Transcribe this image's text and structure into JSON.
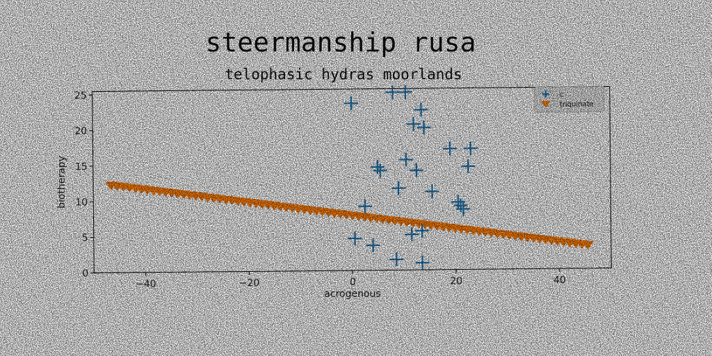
{
  "chart_data": {
    "type": "scatter",
    "title": "steermanship rusa",
    "subtitle": "telophasic hydras moorlands",
    "xlabel": "acrogenous",
    "ylabel": "biotherapy",
    "xlim": [
      -50,
      50
    ],
    "ylim": [
      0,
      25.5
    ],
    "xticks": [
      -40,
      -20,
      0,
      20,
      40
    ],
    "yticks": [
      0,
      5,
      10,
      15,
      20,
      25
    ],
    "grid": false,
    "legend_position": "top-right",
    "series": [
      {
        "name": "c",
        "marker": "plus",
        "color": "#1f77b4",
        "x": [
          0.0,
          8.0,
          10.5,
          13.5,
          12.0,
          14.0,
          19.0,
          23.0,
          22.5,
          10.5,
          5.5,
          5.0,
          12.5,
          9.0,
          15.5,
          2.5,
          20.5,
          21.0,
          21.5,
          0.5,
          4.0,
          8.5,
          13.5,
          13.5,
          11.5
        ],
        "y": [
          23.5,
          25.0,
          25.0,
          22.5,
          20.5,
          20.0,
          17.0,
          17.0,
          14.5,
          15.5,
          14.0,
          14.5,
          14.0,
          11.5,
          11.0,
          9.0,
          9.5,
          9.0,
          8.5,
          4.5,
          3.5,
          1.5,
          1.0,
          5.5,
          5.0
        ]
      },
      {
        "name": "triquinate",
        "marker": "triangle-down",
        "color": "#ff7f0e",
        "x_start": -46.5,
        "x_end": 45.5,
        "y_start": 12.3,
        "y_end": 3.3,
        "count": 80
      }
    ]
  }
}
